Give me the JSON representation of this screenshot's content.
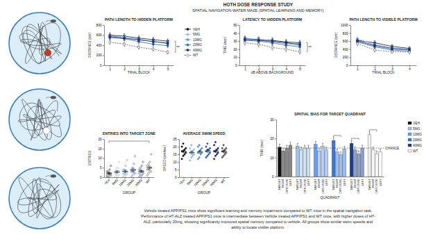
{
  "title": "HOTH DOSE RESPONSE STUDY",
  "subtitle": "SPATIAL NAVIGATION WATER MAZE (SPATIAL LEARNING AND MEMORY)",
  "caption": [
    "Vehicle treated APP/PS1 mice show significant learning and memory impairment compared to WT mice in the spatial navigation task.",
    "Performance of HT-ALZ treated APP/PS1 mice is intermediate between Vehicle treated APP/PS1 and WT mice, with higher doses of HT-",
    "ALZ, particularly 20mg, showing significantly improved spatial memory compared to vehicle.  All groups show similar swim speeds and",
    "ability to locate visible platform."
  ],
  "chart_data": [
    {
      "type": "line",
      "title": "PATH LENGTH TO HIDDEN PLATFORM",
      "x_label": "TRIAL BLOCK",
      "y_label": "DISTANCE (cm)",
      "x": [
        1,
        2,
        3,
        4,
        5
      ],
      "xlim": [
        0.6,
        5.4
      ],
      "xticks": [
        1,
        2,
        3,
        4,
        5
      ],
      "ylim": [
        0,
        800
      ],
      "yticks": [
        0,
        200,
        400,
        600,
        800
      ],
      "legend": "right",
      "annotations": [
        {
          "text": "**",
          "between": [
            "VEH",
            "WT"
          ]
        }
      ],
      "series": [
        {
          "name": "VEH",
          "color": "#111111",
          "marker": "circle",
          "line_style": "solid",
          "values": [
            600,
            580,
            540,
            510,
            480
          ],
          "errors": [
            45,
            48,
            44,
            46,
            42
          ]
        },
        {
          "name": "5MG",
          "color": "#8fbbe0",
          "marker": "circle",
          "line_style": "solid",
          "values": [
            560,
            570,
            520,
            470,
            450
          ],
          "errors": [
            50,
            46,
            48,
            45,
            44
          ]
        },
        {
          "name": "10MG",
          "color": "#5b8fd0",
          "marker": "circle",
          "line_style": "solid",
          "values": [
            590,
            540,
            500,
            480,
            430
          ],
          "errors": [
            48,
            47,
            45,
            44,
            43
          ]
        },
        {
          "name": "20MG",
          "color": "#2f5fb0",
          "marker": "circle",
          "line_style": "solid",
          "values": [
            550,
            530,
            470,
            420,
            390
          ],
          "errors": [
            46,
            45,
            44,
            42,
            40
          ]
        },
        {
          "name": "40MG",
          "color": "#1a2f6b",
          "marker": "circle",
          "line_style": "solid",
          "values": [
            570,
            540,
            510,
            470,
            440
          ],
          "errors": [
            47,
            46,
            45,
            44,
            42
          ]
        },
        {
          "name": "WT",
          "color": "#555555",
          "marker": "open",
          "line_style": "dashed",
          "values": [
            460,
            420,
            360,
            320,
            260
          ],
          "errors": [
            42,
            40,
            38,
            36,
            34
          ]
        }
      ]
    },
    {
      "type": "line",
      "title": "LATENCY TO HIDDEN PLATFORM",
      "x_label": "dB ABOVE BACKGROUND",
      "y_label": "TIME (sec)",
      "x": [
        1,
        2,
        3,
        4,
        5
      ],
      "xlim": [
        0.6,
        5.4
      ],
      "xticks": [
        1,
        2,
        3,
        4,
        5
      ],
      "ylim": [
        0,
        50
      ],
      "yticks": [
        0,
        10,
        20,
        30,
        40,
        50
      ],
      "annotations": [
        {
          "text": "**",
          "between": [
            "VEH",
            "WT"
          ]
        }
      ],
      "series": [
        {
          "name": "VEH",
          "color": "#111111",
          "marker": "circle",
          "line_style": "solid",
          "values": [
            33,
            32,
            31,
            29,
            28
          ],
          "errors": [
            3,
            3,
            3,
            3,
            3
          ]
        },
        {
          "name": "5MG",
          "color": "#8fbbe0",
          "marker": "circle",
          "line_style": "solid",
          "values": [
            32,
            33,
            30,
            28,
            27
          ],
          "errors": [
            3,
            3,
            3,
            3,
            3
          ]
        },
        {
          "name": "10MG",
          "color": "#5b8fd0",
          "marker": "circle",
          "line_style": "solid",
          "values": [
            34,
            31,
            29,
            27,
            25
          ],
          "errors": [
            3,
            3,
            3,
            3,
            3
          ]
        },
        {
          "name": "20MG",
          "color": "#2f5fb0",
          "marker": "circle",
          "line_style": "solid",
          "values": [
            31,
            30,
            28,
            25,
            23
          ],
          "errors": [
            3,
            3,
            3,
            3,
            3
          ]
        },
        {
          "name": "40MG",
          "color": "#1a2f6b",
          "marker": "circle",
          "line_style": "solid",
          "values": [
            32,
            31,
            30,
            28,
            26
          ],
          "errors": [
            3,
            3,
            3,
            3,
            3
          ]
        },
        {
          "name": "WT",
          "color": "#555555",
          "marker": "open",
          "line_style": "dashed",
          "values": [
            28,
            26,
            22,
            20,
            17
          ],
          "errors": [
            3,
            3,
            3,
            3,
            3
          ]
        }
      ]
    },
    {
      "type": "line",
      "title": "PATH LENGTH TO VISIBLE PLATFORM",
      "x_label": "TRIAL BLOCK",
      "y_label": "DISTANCE (cm)",
      "x": [
        1,
        2,
        3,
        4
      ],
      "xlim": [
        0.6,
        4.4
      ],
      "xticks": [
        1,
        2,
        3,
        4
      ],
      "ylim": [
        0,
        1000
      ],
      "yticks": [
        0,
        200,
        400,
        600,
        800,
        1000
      ],
      "series": [
        {
          "name": "VEH",
          "color": "#111111",
          "marker": "circle",
          "line_style": "solid",
          "values": [
            620,
            560,
            470,
            420
          ],
          "errors": [
            55,
            50,
            45,
            40
          ]
        },
        {
          "name": "5MG",
          "color": "#8fbbe0",
          "marker": "circle",
          "line_style": "solid",
          "values": [
            660,
            520,
            430,
            400
          ],
          "errors": [
            55,
            50,
            45,
            40
          ]
        },
        {
          "name": "10MG",
          "color": "#5b8fd0",
          "marker": "circle",
          "line_style": "solid",
          "values": [
            600,
            480,
            400,
            380
          ],
          "errors": [
            55,
            50,
            45,
            40
          ]
        },
        {
          "name": "20MG",
          "color": "#2f5fb0",
          "marker": "circle",
          "line_style": "solid",
          "values": [
            580,
            460,
            380,
            350
          ],
          "errors": [
            55,
            50,
            45,
            40
          ]
        },
        {
          "name": "40MG",
          "color": "#1a2f6b",
          "marker": "circle",
          "line_style": "solid",
          "values": [
            610,
            500,
            420,
            390
          ],
          "errors": [
            55,
            50,
            45,
            40
          ]
        },
        {
          "name": "WT",
          "color": "#555555",
          "marker": "open",
          "line_style": "dashed",
          "values": [
            540,
            380,
            340,
            330
          ],
          "errors": [
            55,
            45,
            40,
            40
          ]
        }
      ]
    },
    {
      "type": "strip",
      "title": "ENTRIES INTO TARGET ZONE",
      "x_label": "GROUP",
      "y_label": "ENTRIES",
      "categories": [
        "VEH",
        "5MG",
        "10MG",
        "20MG",
        "40MG",
        "WT"
      ],
      "colors": [
        "#111111",
        "#8fbbe0",
        "#5b8fd0",
        "#2f5fb0",
        "#1a2f6b",
        "#555555"
      ],
      "marker": "open",
      "ylim": [
        0,
        20
      ],
      "yticks": [
        0,
        5,
        10,
        15,
        20
      ],
      "points": [
        [
          0,
          0,
          1,
          1,
          1,
          2,
          2,
          2,
          3,
          3,
          4,
          6
        ],
        [
          0,
          1,
          1,
          1,
          2,
          2,
          3,
          3,
          3,
          4,
          5,
          8
        ],
        [
          0,
          1,
          1,
          2,
          2,
          2,
          3,
          3,
          4,
          4,
          6,
          9
        ],
        [
          0,
          1,
          2,
          2,
          3,
          3,
          3,
          4,
          4,
          5,
          7,
          11
        ],
        [
          0,
          1,
          1,
          2,
          2,
          3,
          3,
          3,
          4,
          5,
          6,
          8
        ],
        [
          1,
          2,
          3,
          3,
          4,
          4,
          5,
          5,
          6,
          7,
          8,
          12
        ]
      ],
      "means": [
        2.1,
        2.8,
        3.1,
        3.8,
        3.2,
        5.0
      ],
      "errors": [
        0.5,
        0.6,
        0.7,
        0.9,
        0.7,
        0.9
      ],
      "comparisons": [
        [
          "VEH",
          "WT"
        ]
      ]
    },
    {
      "type": "strip",
      "title": "AVERAGE SWIM SPEED",
      "x_label": "GROUP",
      "y_label": "SPEED (cm/sec)",
      "categories": [
        "VEH",
        "5MG",
        "10MG",
        "20MG",
        "40MG",
        "WT"
      ],
      "colors": [
        "#111111",
        "#8fbbe0",
        "#5b8fd0",
        "#2f5fb0",
        "#1a2f6b",
        "#555555"
      ],
      "marker": "circle",
      "ylim": [
        0,
        25
      ],
      "yticks": [
        0,
        5,
        10,
        15,
        20,
        25
      ],
      "points": [
        [
          12,
          14,
          15,
          16,
          17,
          17,
          18,
          19,
          20,
          22
        ],
        [
          11,
          13,
          14,
          15,
          16,
          17,
          17,
          18,
          19,
          21
        ],
        [
          12,
          13,
          15,
          16,
          16,
          17,
          18,
          19,
          20,
          21
        ],
        [
          13,
          14,
          15,
          16,
          17,
          18,
          18,
          19,
          20,
          22
        ],
        [
          12,
          14,
          15,
          16,
          17,
          17,
          18,
          19,
          21,
          23
        ],
        [
          13,
          14,
          15,
          16,
          17,
          17,
          18,
          19,
          19,
          21
        ]
      ],
      "means": [
        17.0,
        16.1,
        16.7,
        17.2,
        17.2,
        16.9
      ],
      "errors": [
        0.9,
        0.9,
        0.9,
        0.9,
        1.0,
        0.8
      ]
    },
    {
      "type": "bar",
      "title": "SPATIAL BIAS FOR TARGET QUADRANT",
      "x_label": "QUADRANT",
      "y_label": "TIME (sec)",
      "categories": [
        "TARGET",
        "RIGHT",
        "OPPOSITE",
        "LEFT"
      ],
      "ylim": [
        0,
        30
      ],
      "yticks": [
        0,
        10,
        20,
        30
      ],
      "legend": "right",
      "chance": 15,
      "chance_label": "CHANCE",
      "series": [
        {
          "name": "VEH",
          "color": "#111111",
          "values": [
            15.5,
            13.5,
            15,
            16.5
          ],
          "errors": [
            1.5,
            1.5,
            1.5,
            1.5
          ]
        },
        {
          "name": "5MG",
          "color": "#9fc5e8",
          "values": [
            16,
            14,
            15,
            15
          ],
          "errors": [
            1.5,
            1.5,
            1.5,
            1.5
          ]
        },
        {
          "name": "10MG",
          "color": "#6d9eeb",
          "values": [
            17,
            13.5,
            16,
            14
          ],
          "errors": [
            1.5,
            1.5,
            1.5,
            1.5
          ]
        },
        {
          "name": "20MG",
          "color": "#3c78d8",
          "values": [
            19,
            13,
            11.5,
            14.5
          ],
          "errors": [
            1.5,
            1.5,
            1.5,
            1.5
          ]
        },
        {
          "name": "40MG",
          "color": "#1c3f8c",
          "values": [
            17.5,
            14,
            12,
            15
          ],
          "errors": [
            1.5,
            1.5,
            1.5,
            1.5
          ]
        },
        {
          "name": "WT",
          "color": "#eeeeee",
          "values": [
            22,
            14,
            12,
            13
          ],
          "errors": [
            1.5,
            1.5,
            1.5,
            1.5
          ]
        }
      ],
      "comparisons": [
        {
          "group": "20MG",
          "between": [
            "TARGET",
            "OPPOSITE"
          ]
        },
        {
          "group": "40MG",
          "between": [
            "TARGET",
            "OPPOSITE"
          ]
        },
        {
          "group": "WT",
          "between": [
            "TARGET",
            "OPPOSITE"
          ]
        }
      ]
    }
  ]
}
